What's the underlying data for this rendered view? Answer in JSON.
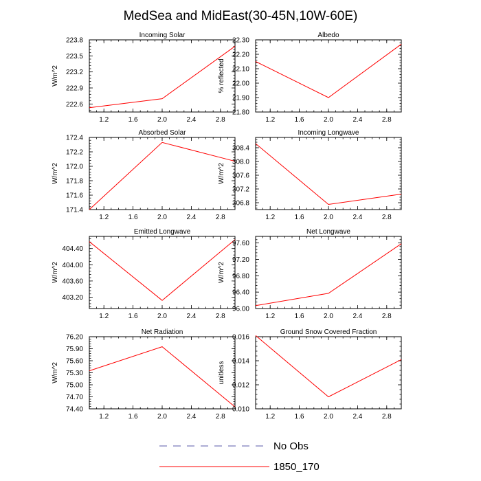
{
  "title": "MedSea and MidEast(30-45N,10W-60E)",
  "colors": {
    "line": "#ff0000",
    "obs": "#5a5aa8",
    "frame": "#000000"
  },
  "legend": [
    {
      "label": "No Obs",
      "style": "dashed",
      "color": "#5a5aa8"
    },
    {
      "label": "1850_170",
      "style": "solid",
      "color": "#ff0000"
    }
  ],
  "chart_data": [
    {
      "type": "line",
      "title": "Incoming Solar",
      "ylabel": "W/m^2",
      "x": [
        1,
        2,
        3
      ],
      "values": [
        222.53,
        222.7,
        223.68
      ],
      "xlim": [
        1,
        3
      ],
      "ylim": [
        222.45,
        223.8
      ],
      "xticks": [
        "1.2",
        "1.6",
        "2.0",
        "2.4",
        "2.8"
      ],
      "yticks": [
        "222.6",
        "222.9",
        "223.2",
        "223.5",
        "223.8"
      ]
    },
    {
      "type": "line",
      "title": "Albedo",
      "ylabel": "% reflected",
      "x": [
        1,
        2,
        3
      ],
      "values": [
        22.15,
        21.9,
        22.27
      ],
      "xlim": [
        1,
        3
      ],
      "ylim": [
        21.8,
        22.3
      ],
      "xticks": [
        "1.2",
        "1.6",
        "2.0",
        "2.4",
        "2.8"
      ],
      "yticks": [
        "21.80",
        "21.90",
        "22.00",
        "22.10",
        "22.20",
        "22.30"
      ]
    },
    {
      "type": "line",
      "title": "Absorbed Solar",
      "ylabel": "W/m^2",
      "x": [
        1,
        2,
        3
      ],
      "values": [
        171.4,
        172.33,
        172.07
      ],
      "xlim": [
        1,
        3
      ],
      "ylim": [
        171.4,
        172.4
      ],
      "xticks": [
        "1.2",
        "1.6",
        "2.0",
        "2.4",
        "2.8"
      ],
      "yticks": [
        "171.4",
        "171.6",
        "171.8",
        "172.0",
        "172.2",
        "172.4"
      ]
    },
    {
      "type": "line",
      "title": "Incoming Longwave",
      "ylabel": "W/m^2",
      "x": [
        1,
        2,
        3
      ],
      "values": [
        308.52,
        306.75,
        307.05
      ],
      "xlim": [
        1,
        3
      ],
      "ylim": [
        306.6,
        308.7
      ],
      "xticks": [
        "1.2",
        "1.6",
        "2.0",
        "2.4",
        "2.8"
      ],
      "yticks": [
        "306.8",
        "307.2",
        "307.6",
        "308.0",
        "308.4"
      ]
    },
    {
      "type": "line",
      "title": "Emitted Longwave",
      "ylabel": "W/m^2",
      "x": [
        1,
        2,
        3
      ],
      "values": [
        404.57,
        403.12,
        404.62
      ],
      "xlim": [
        1,
        3
      ],
      "ylim": [
        402.92,
        404.7
      ],
      "xticks": [
        "1.2",
        "1.6",
        "2.0",
        "2.4",
        "2.8"
      ],
      "yticks": [
        "403.20",
        "403.60",
        "404.00",
        "404.40"
      ]
    },
    {
      "type": "line",
      "title": "Net Longwave",
      "ylabel": "W/m^2",
      "x": [
        1,
        2,
        3
      ],
      "values": [
        96.07,
        96.37,
        97.58
      ],
      "xlim": [
        1,
        3
      ],
      "ylim": [
        96.0,
        97.76
      ],
      "xticks": [
        "1.2",
        "1.6",
        "2.0",
        "2.4",
        "2.8"
      ],
      "yticks": [
        "96.00",
        "96.40",
        "96.80",
        "97.20",
        "97.60"
      ]
    },
    {
      "type": "line",
      "title": "Net Radiation",
      "ylabel": "W/m^2",
      "x": [
        1,
        2,
        3
      ],
      "values": [
        75.35,
        75.95,
        74.45
      ],
      "xlim": [
        1,
        3
      ],
      "ylim": [
        74.4,
        76.2
      ],
      "xticks": [
        "1.2",
        "1.6",
        "2.0",
        "2.4",
        "2.8"
      ],
      "yticks": [
        "74.40",
        "74.70",
        "75.00",
        "75.30",
        "75.60",
        "75.90",
        "76.20"
      ]
    },
    {
      "type": "line",
      "title": "Ground Snow Covered Fraction",
      "ylabel": "unitless",
      "x": [
        1,
        2,
        3
      ],
      "values": [
        0.0161,
        0.011,
        0.0141
      ],
      "xlim": [
        1,
        3
      ],
      "ylim": [
        0.01,
        0.016
      ],
      "xticks": [
        "1.2",
        "1.6",
        "2.0",
        "2.4",
        "2.8"
      ],
      "yticks": [
        "0.010",
        "0.012",
        "0.014",
        "0.016"
      ]
    }
  ]
}
